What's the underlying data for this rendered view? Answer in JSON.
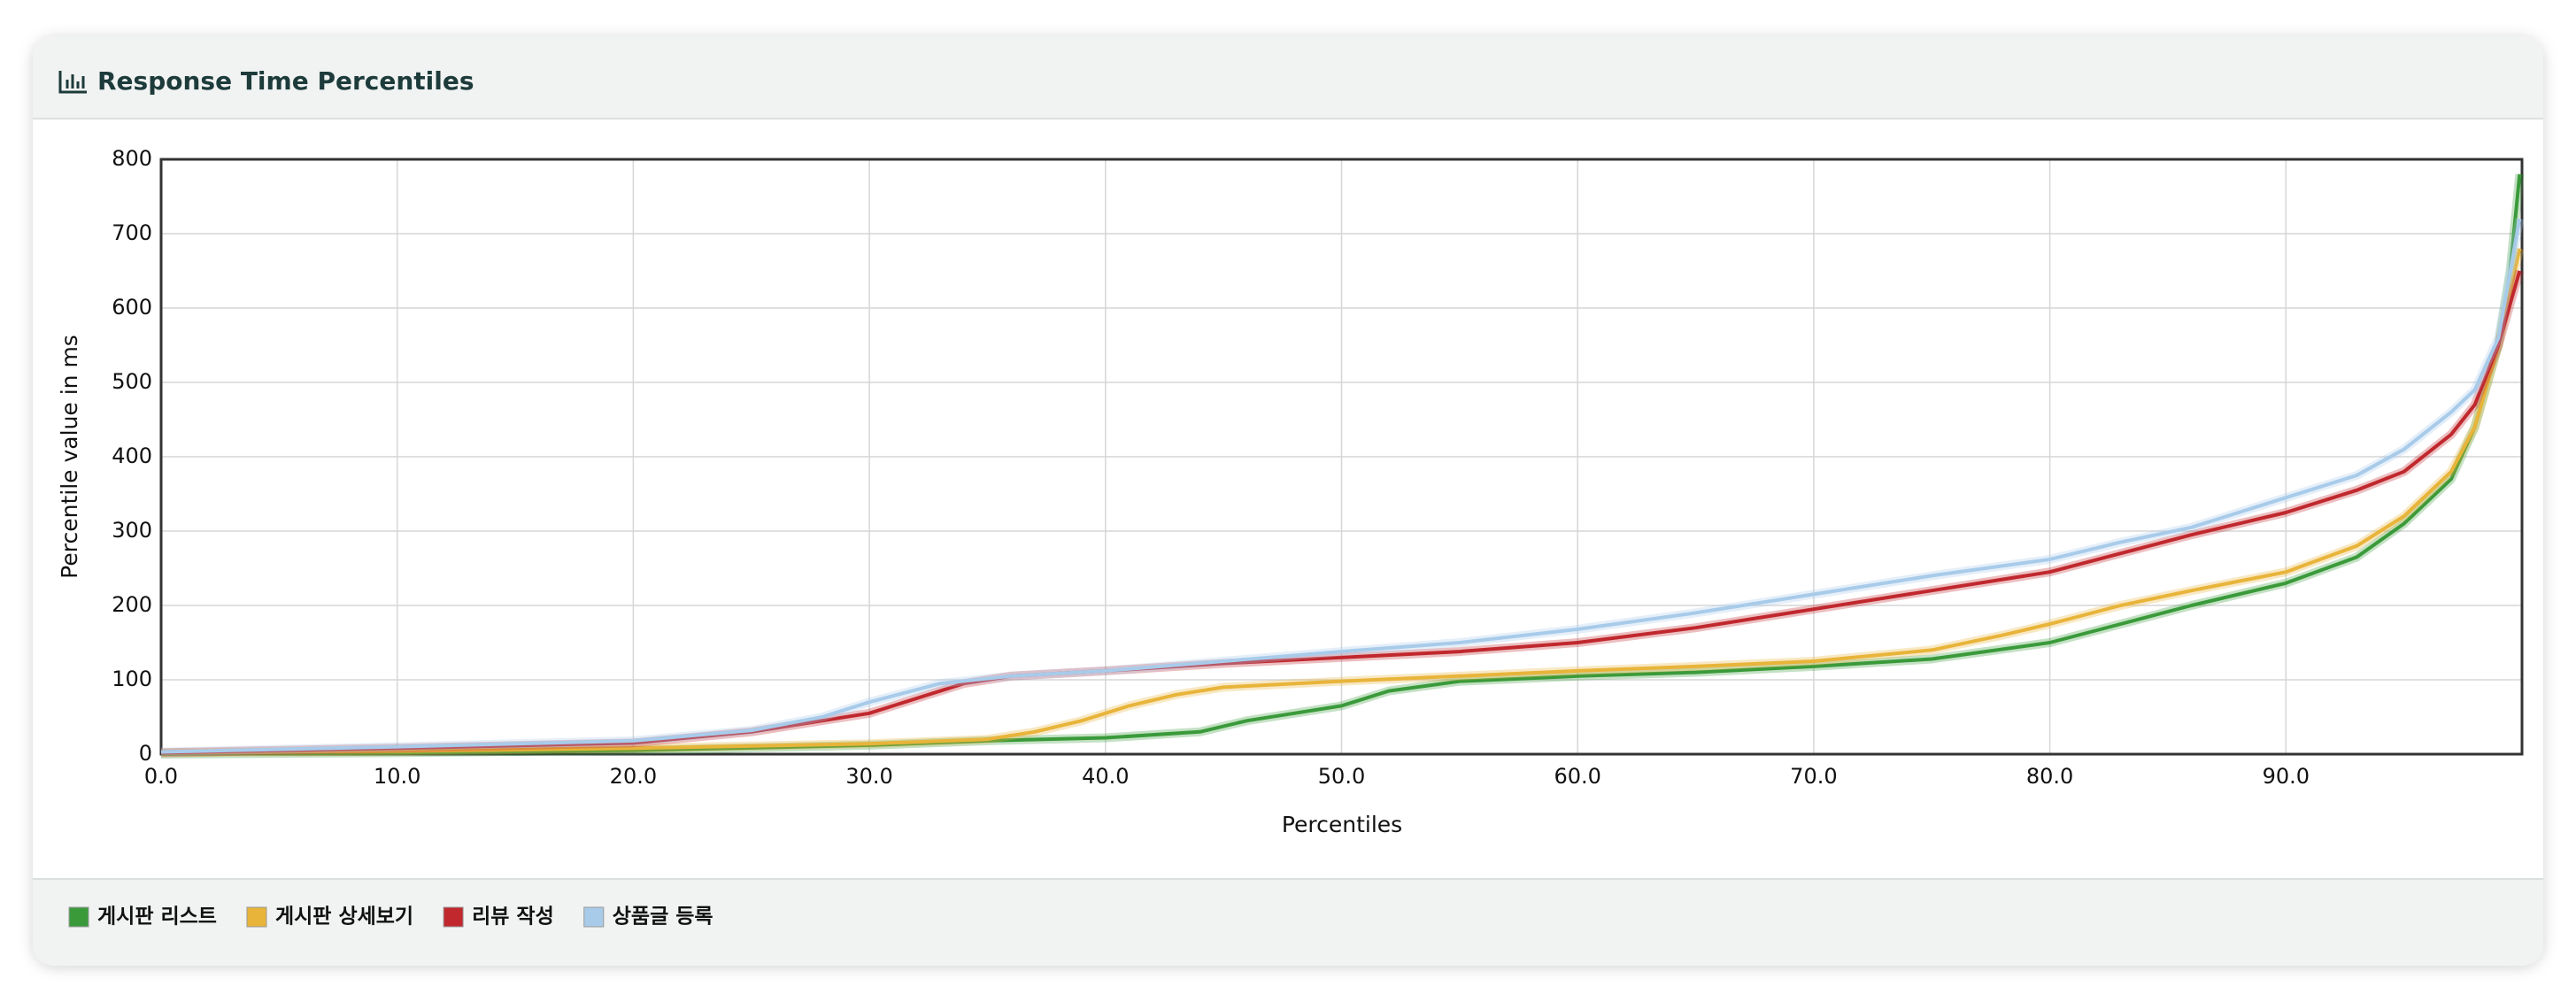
{
  "chart_data": {
    "type": "line",
    "title": "Response Time Percentiles",
    "x_label": "Percentiles",
    "y_label": "Percentile value in ms",
    "xlim": [
      0,
      100
    ],
    "ylim": [
      0,
      800
    ],
    "xticks": [
      {
        "value": 0,
        "label": "0.0"
      },
      {
        "value": 10,
        "label": "10.0"
      },
      {
        "value": 20,
        "label": "20.0"
      },
      {
        "value": 30,
        "label": "30.0"
      },
      {
        "value": 40,
        "label": "40.0"
      },
      {
        "value": 50,
        "label": "50.0"
      },
      {
        "value": 60,
        "label": "60.0"
      },
      {
        "value": 70,
        "label": "70.0"
      },
      {
        "value": 80,
        "label": "80.0"
      },
      {
        "value": 90,
        "label": "90.0"
      }
    ],
    "yticks": [
      0,
      100,
      200,
      300,
      400,
      500,
      600,
      700,
      800
    ],
    "grid": true,
    "legend": "bottom",
    "series": [
      {
        "name": "게시판 리스트",
        "color": "#3a9a3a",
        "x": [
          0,
          10,
          20,
          30,
          35,
          40,
          44,
          46,
          48,
          50,
          52,
          55,
          60,
          65,
          70,
          75,
          80,
          83,
          86,
          90,
          93,
          95,
          97,
          98,
          99,
          99.5,
          99.9
        ],
        "values": [
          0,
          2,
          5,
          12,
          18,
          22,
          30,
          45,
          55,
          65,
          85,
          98,
          105,
          110,
          118,
          128,
          150,
          175,
          200,
          230,
          265,
          310,
          370,
          440,
          550,
          650,
          780
        ]
      },
      {
        "name": "게시판 상세보기",
        "color": "#e8b43a",
        "x": [
          0,
          10,
          20,
          30,
          35,
          37,
          39,
          41,
          43,
          45,
          50,
          55,
          60,
          65,
          70,
          75,
          78,
          80,
          83,
          86,
          90,
          93,
          95,
          97,
          98,
          99,
          99.9
        ],
        "values": [
          2,
          4,
          8,
          14,
          20,
          30,
          45,
          65,
          80,
          90,
          98,
          105,
          112,
          118,
          125,
          140,
          160,
          175,
          200,
          220,
          245,
          280,
          320,
          380,
          440,
          550,
          680
        ]
      },
      {
        "name": "리뷰 작성",
        "color": "#c0282d",
        "x": [
          0,
          10,
          20,
          25,
          28,
          30,
          32,
          34,
          36,
          40,
          45,
          50,
          55,
          60,
          65,
          70,
          75,
          80,
          83,
          86,
          90,
          93,
          95,
          97,
          98,
          99,
          99.9
        ],
        "values": [
          2,
          8,
          15,
          30,
          45,
          55,
          75,
          95,
          105,
          112,
          122,
          130,
          138,
          150,
          170,
          195,
          220,
          245,
          270,
          295,
          325,
          355,
          380,
          430,
          470,
          550,
          650
        ]
      },
      {
        "name": "상품글 등록",
        "color": "#a8cbea",
        "x": [
          0,
          10,
          20,
          25,
          28,
          30,
          33,
          36,
          40,
          45,
          50,
          55,
          60,
          65,
          70,
          75,
          80,
          83,
          86,
          90,
          93,
          95,
          97,
          98,
          99,
          99.9
        ],
        "values": [
          3,
          10,
          18,
          32,
          50,
          70,
          95,
          105,
          112,
          125,
          138,
          150,
          168,
          190,
          215,
          240,
          262,
          285,
          305,
          345,
          375,
          410,
          460,
          490,
          560,
          720
        ]
      }
    ]
  }
}
